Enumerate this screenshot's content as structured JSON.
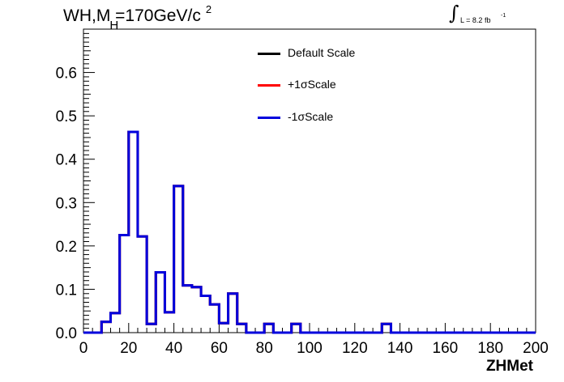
{
  "title": {
    "main": "WH,M",
    "sub": "H",
    "rest": "=170GeV/c",
    "sup": "2"
  },
  "lumi": {
    "integral": "∫",
    "text": "L = 8.2 fb",
    "sup": "-1"
  },
  "legend": [
    {
      "label": "Default Scale",
      "color": "#000000"
    },
    {
      "label": "+1σScale",
      "color": "#ff0000"
    },
    {
      "label": "-1σScale",
      "color": "#0000dd"
    }
  ],
  "chart_data": {
    "type": "line",
    "xlabel": "ZHMet",
    "ylabel": "",
    "xlim": [
      0,
      200
    ],
    "ylim": [
      0,
      0.7
    ],
    "x_ticks": [
      "0",
      "20",
      "40",
      "60",
      "80",
      "100",
      "120",
      "140",
      "160",
      "180",
      "200"
    ],
    "y_ticks": [
      "0.0",
      "0.1",
      "0.2",
      "0.3",
      "0.4",
      "0.5",
      "0.6"
    ],
    "bin_width": 4,
    "bin_low_edges": [
      0,
      4,
      8,
      12,
      16,
      20,
      24,
      28,
      32,
      36,
      40,
      44,
      48,
      52,
      56,
      60,
      64,
      68,
      72,
      76,
      80,
      84,
      88,
      92,
      96,
      100,
      104,
      108,
      112,
      116,
      120,
      124,
      128,
      132,
      136,
      140,
      144,
      148,
      152,
      156,
      160,
      164,
      168,
      172,
      176,
      180,
      184,
      188,
      192,
      196
    ],
    "series": [
      {
        "name": "Default Scale",
        "color": "#000000",
        "values": [
          0,
          0,
          0.025,
          0.045,
          0.225,
          0.463,
          0.222,
          0.02,
          0.139,
          0.047,
          0.338,
          0.109,
          0.105,
          0.085,
          0.065,
          0.022,
          0.09,
          0.02,
          0,
          0,
          0.02,
          0,
          0,
          0.02,
          0,
          0,
          0,
          0,
          0,
          0,
          0,
          0,
          0,
          0.02,
          0,
          0,
          0,
          0,
          0,
          0,
          0,
          0,
          0,
          0,
          0,
          0,
          0,
          0,
          0,
          0
        ]
      },
      {
        "name": "+1σScale",
        "color": "#ff0000",
        "values": [
          0,
          0,
          0.025,
          0.045,
          0.225,
          0.463,
          0.222,
          0.02,
          0.139,
          0.047,
          0.338,
          0.109,
          0.105,
          0.085,
          0.065,
          0.022,
          0.09,
          0.02,
          0,
          0,
          0.02,
          0,
          0,
          0.02,
          0,
          0,
          0,
          0,
          0,
          0,
          0,
          0,
          0,
          0.02,
          0,
          0,
          0,
          0,
          0,
          0,
          0,
          0,
          0,
          0,
          0,
          0,
          0,
          0,
          0,
          0
        ]
      },
      {
        "name": "-1σScale",
        "color": "#0000dd",
        "values": [
          0,
          0,
          0.025,
          0.045,
          0.225,
          0.463,
          0.222,
          0.02,
          0.139,
          0.047,
          0.338,
          0.109,
          0.105,
          0.085,
          0.065,
          0.022,
          0.09,
          0.02,
          0,
          0,
          0.02,
          0,
          0,
          0.02,
          0,
          0,
          0,
          0,
          0,
          0,
          0,
          0,
          0,
          0.02,
          0,
          0,
          0,
          0,
          0,
          0,
          0,
          0,
          0,
          0,
          0,
          0,
          0,
          0,
          0,
          0
        ]
      }
    ],
    "grid": false,
    "legend_position": "top-center"
  }
}
